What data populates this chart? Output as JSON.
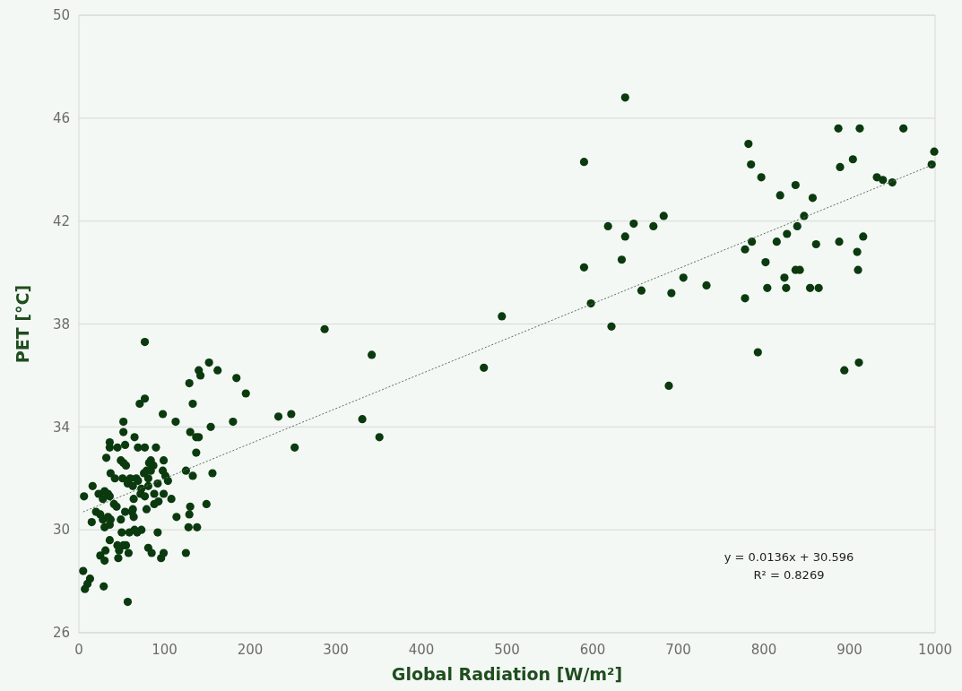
{
  "chart_data": {
    "type": "scatter",
    "xlabel": "Global Radiation [W/m²]",
    "ylabel": "PET [°C]",
    "xlim": [
      0,
      1000
    ],
    "xticks": [
      0,
      100,
      200,
      300,
      400,
      500,
      600,
      700,
      800,
      900,
      1000
    ],
    "ylim": [
      26,
      50
    ],
    "yticks": [
      26,
      30,
      34,
      38,
      42,
      46,
      50
    ],
    "grid": "y",
    "annotations": [
      "y = 0.0136x + 30.596",
      "R² = 0.8269"
    ],
    "series": [
      {
        "marker": "circle",
        "color": "#0b3a0e",
        "x": [
          887,
          912,
          963,
          999,
          996,
          904,
          889,
          932,
          939,
          950,
          782,
          785,
          797,
          837,
          819,
          857,
          847,
          839,
          827,
          815,
          786,
          778,
          802,
          842,
          837,
          824,
          804,
          826,
          854,
          864,
          861,
          888,
          916,
          909,
          910,
          778,
          733,
          706,
          793,
          894,
          911,
          638,
          590,
          618,
          648,
          671,
          683,
          638,
          634,
          590,
          657,
          692,
          598,
          622,
          689,
          494,
          473,
          287,
          342,
          331,
          351,
          77,
          152,
          140,
          142,
          162,
          184,
          129,
          195,
          77,
          71,
          133,
          98,
          113,
          52,
          52,
          154,
          180,
          233,
          248,
          252,
          130,
          140,
          137,
          137,
          99,
          90,
          65,
          69,
          77,
          125,
          156,
          133,
          36,
          36,
          45,
          54,
          32,
          49,
          52,
          84,
          82,
          37,
          42,
          55,
          79,
          76,
          87,
          84,
          98,
          101,
          104,
          51,
          60,
          67,
          57,
          63,
          69,
          73,
          81,
          81,
          72,
          77,
          64,
          88,
          92,
          99,
          108,
          93,
          88,
          79,
          6,
          16,
          23,
          30,
          34,
          28,
          36,
          41,
          44,
          15,
          20,
          25,
          28,
          30,
          34,
          37,
          36,
          49,
          54,
          62,
          64,
          63,
          59,
          50,
          65,
          73,
          68,
          92,
          36,
          45,
          52,
          47,
          55,
          58,
          31,
          25,
          30,
          46,
          81,
          85,
          96,
          99,
          5,
          13,
          10,
          7,
          29,
          57,
          114,
          129,
          130,
          128,
          138,
          149,
          125
        ],
        "values": [
          45.6,
          45.6,
          45.6,
          44.7,
          44.2,
          44.4,
          44.1,
          43.7,
          43.6,
          43.5,
          45.0,
          44.2,
          43.7,
          43.4,
          43.0,
          42.9,
          42.2,
          41.8,
          41.5,
          41.2,
          41.2,
          40.9,
          40.4,
          40.1,
          40.1,
          39.8,
          39.4,
          39.4,
          39.4,
          39.4,
          41.1,
          41.2,
          41.4,
          40.8,
          40.1,
          39.0,
          39.5,
          39.8,
          36.9,
          36.2,
          36.5,
          46.8,
          44.3,
          41.8,
          41.9,
          41.8,
          42.2,
          41.4,
          40.5,
          40.2,
          39.3,
          39.2,
          38.8,
          37.9,
          35.6,
          38.3,
          36.3,
          37.8,
          36.8,
          34.3,
          33.6,
          37.3,
          36.5,
          36.2,
          36.0,
          36.2,
          35.9,
          35.7,
          35.3,
          35.1,
          34.9,
          34.9,
          34.5,
          34.2,
          34.2,
          33.8,
          34.0,
          34.2,
          34.4,
          34.5,
          33.2,
          33.8,
          33.6,
          33.6,
          33.0,
          32.7,
          33.2,
          33.6,
          33.2,
          33.2,
          32.3,
          32.2,
          32.1,
          33.4,
          33.2,
          33.2,
          33.3,
          32.8,
          32.7,
          32.6,
          32.7,
          32.6,
          32.2,
          32.0,
          32.5,
          32.3,
          32.2,
          32.5,
          32.3,
          32.3,
          32.1,
          31.9,
          32.0,
          32.0,
          32.0,
          31.8,
          31.7,
          31.9,
          31.6,
          32.0,
          31.7,
          31.4,
          31.3,
          31.2,
          31.4,
          31.8,
          31.4,
          31.2,
          31.1,
          31.0,
          30.8,
          31.3,
          31.7,
          31.4,
          31.5,
          31.4,
          31.2,
          31.3,
          31.0,
          30.9,
          30.3,
          30.7,
          30.6,
          30.4,
          30.1,
          30.5,
          30.4,
          30.2,
          30.4,
          30.7,
          30.7,
          30.5,
          30.8,
          29.9,
          29.9,
          30.0,
          30.0,
          29.9,
          29.9,
          29.6,
          29.4,
          29.4,
          29.2,
          29.4,
          29.1,
          29.2,
          29.0,
          28.8,
          28.9,
          29.3,
          29.1,
          28.9,
          29.1,
          28.4,
          28.1,
          27.9,
          27.7,
          27.8,
          27.2,
          30.5,
          30.6,
          30.9,
          30.1,
          30.1,
          31.0,
          29.1
        ]
      },
      {
        "type": "line",
        "line_style": "dotted",
        "color": "#5a6f5c",
        "x": [
          5,
          998
        ],
        "values": [
          30.7,
          44.2
        ]
      }
    ]
  }
}
